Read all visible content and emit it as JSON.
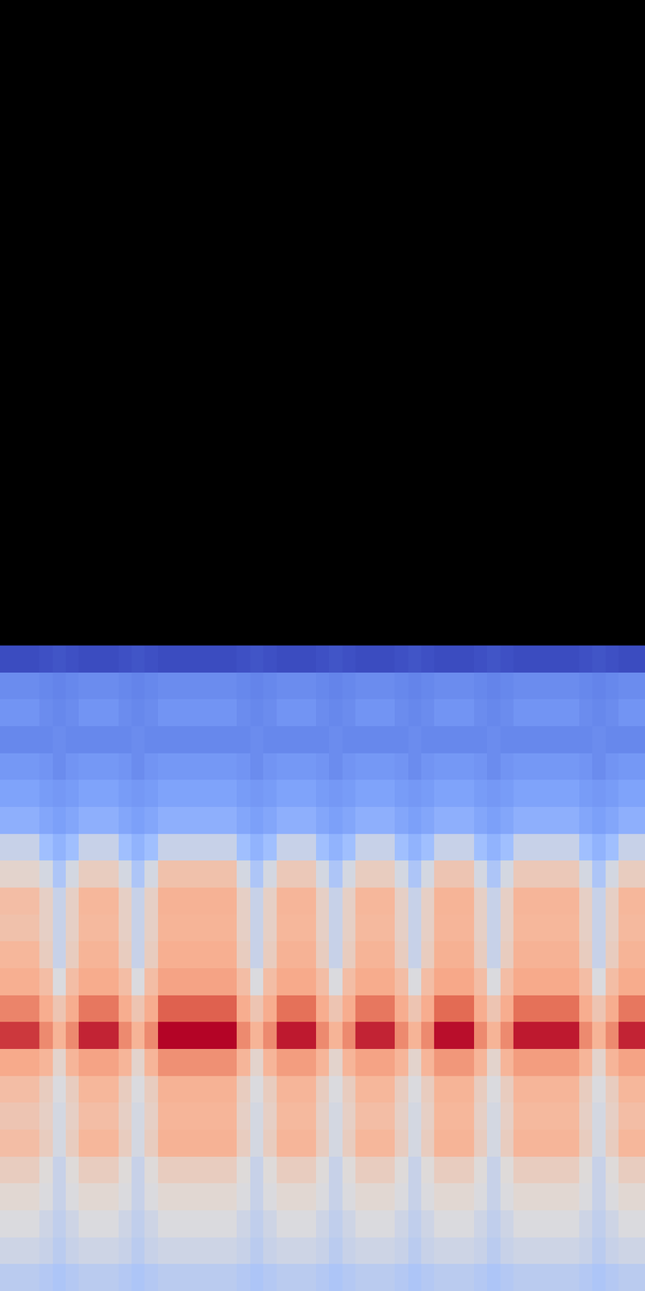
{
  "chart_data": {
    "type": "heatmap",
    "tick_labels": false,
    "cells": [
      [
        16,
        16,
        16,
        17,
        18,
        17,
        16,
        16,
        16,
        17,
        18,
        17,
        16,
        16,
        16,
        16,
        16,
        16,
        17,
        18,
        17,
        16,
        16,
        16,
        17,
        18,
        17,
        16,
        16,
        16,
        17,
        18,
        17,
        16,
        16,
        16,
        17,
        18,
        17,
        16,
        16,
        16,
        16,
        16,
        17,
        18,
        17,
        16,
        16
      ],
      [
        31,
        31,
        31,
        30,
        29,
        30,
        31,
        31,
        31,
        30,
        29,
        30,
        31,
        31,
        31,
        31,
        31,
        31,
        30,
        29,
        30,
        31,
        31,
        31,
        30,
        29,
        30,
        31,
        31,
        31,
        30,
        29,
        30,
        31,
        31,
        31,
        30,
        29,
        30,
        31,
        31,
        31,
        31,
        31,
        30,
        29,
        30,
        31,
        31
      ],
      [
        33,
        33,
        33,
        31,
        30,
        31,
        33,
        33,
        33,
        31,
        30,
        31,
        33,
        33,
        33,
        33,
        33,
        33,
        31,
        30,
        31,
        33,
        33,
        33,
        31,
        30,
        31,
        33,
        33,
        33,
        31,
        30,
        31,
        33,
        33,
        33,
        31,
        30,
        31,
        33,
        33,
        33,
        33,
        33,
        31,
        30,
        31,
        33,
        33
      ],
      [
        30,
        30,
        30,
        30,
        31,
        30,
        30,
        30,
        30,
        30,
        31,
        30,
        30,
        30,
        30,
        30,
        30,
        30,
        30,
        31,
        30,
        30,
        30,
        30,
        30,
        31,
        30,
        30,
        30,
        30,
        30,
        31,
        30,
        30,
        30,
        30,
        30,
        31,
        30,
        30,
        30,
        30,
        30,
        30,
        30,
        31,
        30,
        30,
        30
      ],
      [
        34,
        34,
        34,
        33,
        31,
        33,
        34,
        34,
        34,
        33,
        31,
        33,
        34,
        34,
        34,
        34,
        34,
        34,
        33,
        31,
        33,
        34,
        34,
        34,
        33,
        31,
        33,
        34,
        34,
        34,
        33,
        31,
        33,
        34,
        34,
        34,
        33,
        31,
        33,
        34,
        34,
        34,
        34,
        34,
        33,
        31,
        33,
        34,
        34
      ],
      [
        37,
        37,
        37,
        35,
        34,
        35,
        37,
        37,
        37,
        35,
        34,
        35,
        37,
        37,
        37,
        37,
        37,
        37,
        35,
        34,
        35,
        37,
        37,
        37,
        35,
        34,
        35,
        37,
        37,
        37,
        35,
        34,
        35,
        37,
        37,
        37,
        35,
        34,
        35,
        37,
        37,
        37,
        37,
        37,
        35,
        34,
        35,
        37,
        37
      ],
      [
        41,
        41,
        41,
        38,
        36,
        38,
        41,
        41,
        41,
        38,
        36,
        38,
        41,
        41,
        41,
        41,
        41,
        41,
        38,
        36,
        38,
        41,
        41,
        41,
        38,
        36,
        38,
        41,
        41,
        41,
        38,
        36,
        38,
        41,
        41,
        41,
        38,
        36,
        38,
        41,
        41,
        41,
        41,
        41,
        38,
        36,
        38,
        41,
        41
      ],
      [
        52,
        52,
        52,
        46,
        42,
        46,
        52,
        52,
        52,
        46,
        42,
        46,
        52,
        52,
        52,
        52,
        52,
        52,
        46,
        42,
        46,
        52,
        52,
        52,
        46,
        42,
        46,
        52,
        52,
        52,
        46,
        42,
        46,
        52,
        52,
        52,
        46,
        42,
        46,
        52,
        52,
        52,
        52,
        52,
        46,
        42,
        46,
        52,
        52
      ],
      [
        58,
        58,
        58,
        54,
        48,
        54,
        60,
        60,
        60,
        54,
        48,
        54,
        63,
        63,
        63,
        63,
        63,
        63,
        54,
        48,
        54,
        61,
        61,
        61,
        54,
        48,
        54,
        60,
        60,
        60,
        54,
        48,
        54,
        62,
        62,
        62,
        54,
        48,
        54,
        61,
        61,
        61,
        61,
        61,
        54,
        48,
        54,
        60,
        60
      ],
      [
        64,
        64,
        64,
        59,
        52,
        59,
        66,
        66,
        66,
        59,
        52,
        59,
        69,
        69,
        69,
        69,
        69,
        69,
        59,
        52,
        59,
        67,
        67,
        67,
        59,
        52,
        59,
        66,
        66,
        66,
        59,
        52,
        59,
        68,
        68,
        68,
        59,
        52,
        59,
        67,
        67,
        67,
        67,
        67,
        59,
        52,
        59,
        66,
        66
      ],
      [
        63,
        63,
        63,
        59,
        52,
        59,
        65,
        65,
        65,
        59,
        52,
        59,
        68,
        68,
        68,
        68,
        68,
        68,
        59,
        52,
        59,
        66,
        66,
        66,
        59,
        52,
        59,
        65,
        65,
        65,
        59,
        52,
        59,
        67,
        67,
        67,
        59,
        52,
        59,
        66,
        66,
        66,
        66,
        66,
        59,
        52,
        59,
        65,
        65
      ],
      [
        66,
        66,
        66,
        60,
        52,
        60,
        68,
        68,
        68,
        60,
        52,
        60,
        71,
        71,
        71,
        71,
        71,
        71,
        60,
        52,
        60,
        69,
        69,
        69,
        60,
        52,
        60,
        68,
        68,
        68,
        60,
        52,
        60,
        70,
        70,
        70,
        60,
        52,
        60,
        69,
        69,
        69,
        69,
        69,
        60,
        52,
        60,
        68,
        68
      ],
      [
        71,
        71,
        71,
        64,
        55,
        64,
        73,
        73,
        73,
        64,
        55,
        64,
        76,
        76,
        76,
        76,
        76,
        76,
        64,
        55,
        64,
        74,
        74,
        74,
        64,
        55,
        64,
        73,
        73,
        73,
        64,
        55,
        64,
        75,
        75,
        75,
        64,
        55,
        64,
        74,
        74,
        74,
        74,
        74,
        64,
        55,
        64,
        73,
        73
      ],
      [
        81,
        81,
        81,
        72,
        62,
        72,
        83,
        83,
        83,
        72,
        62,
        72,
        86,
        86,
        86,
        86,
        86,
        86,
        72,
        62,
        72,
        84,
        84,
        84,
        72,
        62,
        72,
        83,
        83,
        83,
        72,
        62,
        72,
        85,
        85,
        85,
        72,
        62,
        72,
        84,
        84,
        84,
        84,
        84,
        72,
        62,
        72,
        83,
        83
      ],
      [
        90,
        90,
        90,
        80,
        68,
        80,
        92,
        92,
        92,
        80,
        68,
        80,
        95,
        95,
        95,
        95,
        95,
        95,
        80,
        68,
        80,
        93,
        93,
        93,
        80,
        68,
        80,
        92,
        92,
        92,
        80,
        68,
        80,
        94,
        94,
        94,
        80,
        68,
        80,
        93,
        93,
        93,
        93,
        93,
        80,
        68,
        80,
        92,
        92
      ],
      [
        74,
        74,
        74,
        67,
        58,
        67,
        76,
        76,
        76,
        67,
        58,
        67,
        79,
        79,
        79,
        79,
        79,
        79,
        67,
        58,
        67,
        77,
        77,
        77,
        67,
        58,
        67,
        76,
        76,
        76,
        67,
        58,
        67,
        78,
        78,
        78,
        67,
        58,
        67,
        77,
        77,
        77,
        77,
        77,
        67,
        58,
        67,
        76,
        76
      ],
      [
        64,
        64,
        64,
        60,
        55,
        60,
        66,
        66,
        66,
        60,
        55,
        60,
        69,
        69,
        69,
        69,
        69,
        69,
        60,
        55,
        60,
        67,
        67,
        67,
        60,
        55,
        60,
        66,
        66,
        66,
        60,
        55,
        60,
        68,
        68,
        68,
        60,
        55,
        60,
        67,
        67,
        67,
        67,
        67,
        60,
        55,
        60,
        66,
        66
      ],
      [
        62,
        62,
        62,
        59,
        54,
        59,
        64,
        64,
        64,
        59,
        54,
        59,
        67,
        67,
        67,
        67,
        67,
        67,
        59,
        54,
        59,
        65,
        65,
        65,
        59,
        54,
        59,
        64,
        64,
        64,
        59,
        54,
        59,
        66,
        66,
        66,
        59,
        54,
        59,
        65,
        65,
        65,
        65,
        65,
        59,
        54,
        59,
        64,
        64
      ],
      [
        64,
        64,
        64,
        60,
        54,
        60,
        66,
        66,
        66,
        60,
        54,
        60,
        69,
        69,
        69,
        69,
        69,
        69,
        60,
        54,
        60,
        67,
        67,
        67,
        60,
        54,
        60,
        66,
        66,
        66,
        60,
        54,
        60,
        68,
        68,
        68,
        60,
        54,
        60,
        67,
        67,
        67,
        67,
        67,
        60,
        54,
        60,
        66,
        66
      ],
      [
        60,
        60,
        60,
        56,
        52,
        56,
        60,
        60,
        60,
        56,
        52,
        56,
        60,
        60,
        60,
        60,
        60,
        60,
        56,
        52,
        56,
        60,
        60,
        60,
        56,
        52,
        56,
        60,
        60,
        60,
        56,
        52,
        56,
        60,
        60,
        60,
        56,
        52,
        56,
        60,
        60,
        60,
        60,
        60,
        56,
        52,
        56,
        60,
        60
      ],
      [
        57,
        57,
        57,
        55,
        52,
        55,
        57,
        57,
        57,
        55,
        52,
        55,
        57,
        57,
        57,
        57,
        57,
        57,
        55,
        52,
        55,
        57,
        57,
        57,
        55,
        52,
        55,
        57,
        57,
        57,
        55,
        52,
        55,
        57,
        57,
        57,
        55,
        52,
        55,
        57,
        57,
        57,
        57,
        57,
        55,
        52,
        55,
        57,
        57
      ],
      [
        55,
        55,
        55,
        53,
        51,
        53,
        55,
        55,
        55,
        53,
        51,
        53,
        55,
        55,
        55,
        55,
        55,
        55,
        53,
        51,
        53,
        55,
        55,
        55,
        53,
        51,
        53,
        55,
        55,
        55,
        53,
        51,
        53,
        55,
        55,
        55,
        53,
        51,
        53,
        55,
        55,
        55,
        55,
        55,
        53,
        51,
        53,
        55,
        55
      ],
      [
        53,
        53,
        53,
        52,
        50,
        52,
        53,
        53,
        53,
        52,
        50,
        52,
        53,
        53,
        53,
        53,
        53,
        53,
        52,
        50,
        52,
        53,
        53,
        53,
        52,
        50,
        52,
        53,
        53,
        53,
        52,
        50,
        52,
        53,
        53,
        53,
        52,
        50,
        52,
        53,
        53,
        53,
        53,
        53,
        52,
        50,
        52,
        53,
        53
      ],
      [
        50,
        50,
        50,
        49,
        48,
        49,
        50,
        50,
        50,
        49,
        48,
        49,
        50,
        50,
        50,
        50,
        50,
        50,
        49,
        48,
        49,
        50,
        50,
        50,
        49,
        48,
        49,
        50,
        50,
        50,
        49,
        48,
        49,
        50,
        50,
        50,
        49,
        48,
        49,
        50,
        50,
        50,
        50,
        50,
        49,
        48,
        49,
        50,
        50
      ]
    ]
  }
}
